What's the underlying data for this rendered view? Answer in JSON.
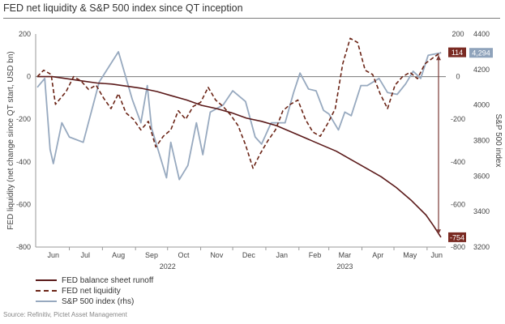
{
  "title": "FED net liquidity & S&P 500 index since QT inception",
  "source": "Source: Refinitiv, Pictet Asset Management",
  "colors": {
    "runoff": "#5b1a1a",
    "liquidity": "#6b2416",
    "sp500": "#97a9bf",
    "zero_line": "#777777",
    "arrow": "#7d3a36",
    "badge_left": "#7a2a22",
    "badge_right": "#8fa3bb"
  },
  "chart_data": {
    "type": "line",
    "title": "FED net liquidity & S&P 500 index since QT inception",
    "ylabel": "FED liquidity (net change since QT start, USD bn)",
    "ylabel_right": "S&P 500 index",
    "ylim": [
      -800,
      200
    ],
    "ylim_right": [
      3200,
      4400
    ],
    "yticks": [
      "200",
      "0",
      "-200",
      "-400",
      "-600",
      "-800"
    ],
    "yticks_mid": [
      "200",
      "0",
      "-200",
      "-400",
      "-600",
      "-800"
    ],
    "yticks_right": [
      "4400",
      "4200",
      "4000",
      "3800",
      "3600",
      "3400",
      "3200"
    ],
    "x_month_labels": [
      "Jun",
      "Jul",
      "Aug",
      "Sep",
      "Oct",
      "Nov",
      "Dec",
      "Jan",
      "Feb",
      "Mar",
      "Apr",
      "May",
      "Jun"
    ],
    "x_year_labels": [
      "2022",
      "2023"
    ],
    "grid": false,
    "legend_position": "bottom-left",
    "series": [
      {
        "name": "FED balance sheet runoff",
        "axis": "left",
        "style": "solid",
        "points": [
          [
            "2022-06-01",
            0
          ],
          [
            "2022-06-15",
            0
          ],
          [
            "2022-06-29",
            -10
          ],
          [
            "2022-07-13",
            -20
          ],
          [
            "2022-07-27",
            -30
          ],
          [
            "2022-08-10",
            -35
          ],
          [
            "2022-08-24",
            -45
          ],
          [
            "2022-09-07",
            -55
          ],
          [
            "2022-09-21",
            -70
          ],
          [
            "2022-10-05",
            -90
          ],
          [
            "2022-10-19",
            -110
          ],
          [
            "2022-11-02",
            -135
          ],
          [
            "2022-11-16",
            -150
          ],
          [
            "2022-11-30",
            -170
          ],
          [
            "2022-12-14",
            -195
          ],
          [
            "2022-12-28",
            -210
          ],
          [
            "2023-01-11",
            -230
          ],
          [
            "2023-01-25",
            -260
          ],
          [
            "2023-02-08",
            -290
          ],
          [
            "2023-02-22",
            -320
          ],
          [
            "2023-03-08",
            -350
          ],
          [
            "2023-03-22",
            -390
          ],
          [
            "2023-04-05",
            -430
          ],
          [
            "2023-04-19",
            -470
          ],
          [
            "2023-05-03",
            -520
          ],
          [
            "2023-05-17",
            -580
          ],
          [
            "2023-05-31",
            -650
          ],
          [
            "2023-06-07",
            -700
          ],
          [
            "2023-06-14",
            -754
          ]
        ]
      },
      {
        "name": "FED net liquidity",
        "axis": "left",
        "style": "dashed",
        "points": [
          [
            "2022-06-01",
            0
          ],
          [
            "2022-06-07",
            30
          ],
          [
            "2022-06-14",
            10
          ],
          [
            "2022-06-18",
            -130
          ],
          [
            "2022-06-28",
            -70
          ],
          [
            "2022-07-05",
            0
          ],
          [
            "2022-07-12",
            -20
          ],
          [
            "2022-07-19",
            -60
          ],
          [
            "2022-07-26",
            -40
          ],
          [
            "2022-08-02",
            -100
          ],
          [
            "2022-08-09",
            -150
          ],
          [
            "2022-08-16",
            -80
          ],
          [
            "2022-08-23",
            -170
          ],
          [
            "2022-08-30",
            -200
          ],
          [
            "2022-09-06",
            -250
          ],
          [
            "2022-09-13",
            -210
          ],
          [
            "2022-09-20",
            -330
          ],
          [
            "2022-09-27",
            -280
          ],
          [
            "2022-10-04",
            -250
          ],
          [
            "2022-10-11",
            -160
          ],
          [
            "2022-10-18",
            -200
          ],
          [
            "2022-10-25",
            -140
          ],
          [
            "2022-11-01",
            -120
          ],
          [
            "2022-11-08",
            -50
          ],
          [
            "2022-11-15",
            -110
          ],
          [
            "2022-11-22",
            -140
          ],
          [
            "2022-11-29",
            -180
          ],
          [
            "2022-12-06",
            -230
          ],
          [
            "2022-12-13",
            -320
          ],
          [
            "2022-12-20",
            -430
          ],
          [
            "2022-12-27",
            -360
          ],
          [
            "2023-01-03",
            -300
          ],
          [
            "2023-01-10",
            -250
          ],
          [
            "2023-01-17",
            -160
          ],
          [
            "2023-01-24",
            -130
          ],
          [
            "2023-01-31",
            -110
          ],
          [
            "2023-02-07",
            -200
          ],
          [
            "2023-02-14",
            -260
          ],
          [
            "2023-02-21",
            -280
          ],
          [
            "2023-02-28",
            -220
          ],
          [
            "2023-03-07",
            -150
          ],
          [
            "2023-03-14",
            60
          ],
          [
            "2023-03-21",
            180
          ],
          [
            "2023-03-28",
            160
          ],
          [
            "2023-04-04",
            30
          ],
          [
            "2023-04-11",
            10
          ],
          [
            "2023-04-18",
            -80
          ],
          [
            "2023-04-25",
            -150
          ],
          [
            "2023-05-02",
            -40
          ],
          [
            "2023-05-09",
            0
          ],
          [
            "2023-05-16",
            20
          ],
          [
            "2023-05-23",
            -10
          ],
          [
            "2023-05-30",
            60
          ],
          [
            "2023-06-07",
            90
          ],
          [
            "2023-06-14",
            114
          ]
        ]
      },
      {
        "name": "S&P 500 index (rhs)",
        "axis": "right",
        "style": "solid",
        "points": [
          [
            "2022-06-01",
            4100
          ],
          [
            "2022-06-08",
            4150
          ],
          [
            "2022-06-13",
            3750
          ],
          [
            "2022-06-16",
            3670
          ],
          [
            "2022-06-24",
            3900
          ],
          [
            "2022-07-01",
            3820
          ],
          [
            "2022-07-14",
            3790
          ],
          [
            "2022-07-29",
            4130
          ],
          [
            "2022-08-16",
            4300
          ],
          [
            "2022-08-29",
            4030
          ],
          [
            "2022-09-06",
            3900
          ],
          [
            "2022-09-12",
            4110
          ],
          [
            "2022-09-16",
            3870
          ],
          [
            "2022-09-30",
            3590
          ],
          [
            "2022-10-04",
            3790
          ],
          [
            "2022-10-12",
            3580
          ],
          [
            "2022-10-20",
            3660
          ],
          [
            "2022-10-28",
            3900
          ],
          [
            "2022-11-03",
            3720
          ],
          [
            "2022-11-10",
            3960
          ],
          [
            "2022-11-22",
            4000
          ],
          [
            "2022-12-01",
            4080
          ],
          [
            "2022-12-13",
            4020
          ],
          [
            "2022-12-22",
            3820
          ],
          [
            "2022-12-28",
            3780
          ],
          [
            "2023-01-06",
            3900
          ],
          [
            "2023-01-19",
            3900
          ],
          [
            "2023-01-27",
            4070
          ],
          [
            "2023-02-02",
            4180
          ],
          [
            "2023-02-10",
            4090
          ],
          [
            "2023-02-17",
            4080
          ],
          [
            "2023-02-24",
            3970
          ],
          [
            "2023-03-01",
            3950
          ],
          [
            "2023-03-10",
            3860
          ],
          [
            "2023-03-16",
            3960
          ],
          [
            "2023-03-22",
            3940
          ],
          [
            "2023-03-31",
            4110
          ],
          [
            "2023-04-06",
            4110
          ],
          [
            "2023-04-17",
            4150
          ],
          [
            "2023-04-25",
            4070
          ],
          [
            "2023-05-04",
            4060
          ],
          [
            "2023-05-12",
            4120
          ],
          [
            "2023-05-19",
            4190
          ],
          [
            "2023-05-26",
            4150
          ],
          [
            "2023-06-02",
            4280
          ],
          [
            "2023-06-14",
            4294
          ]
        ]
      }
    ],
    "end_labels": {
      "liquidity": "114",
      "runoff": "-754",
      "sp500": "4,294"
    }
  }
}
